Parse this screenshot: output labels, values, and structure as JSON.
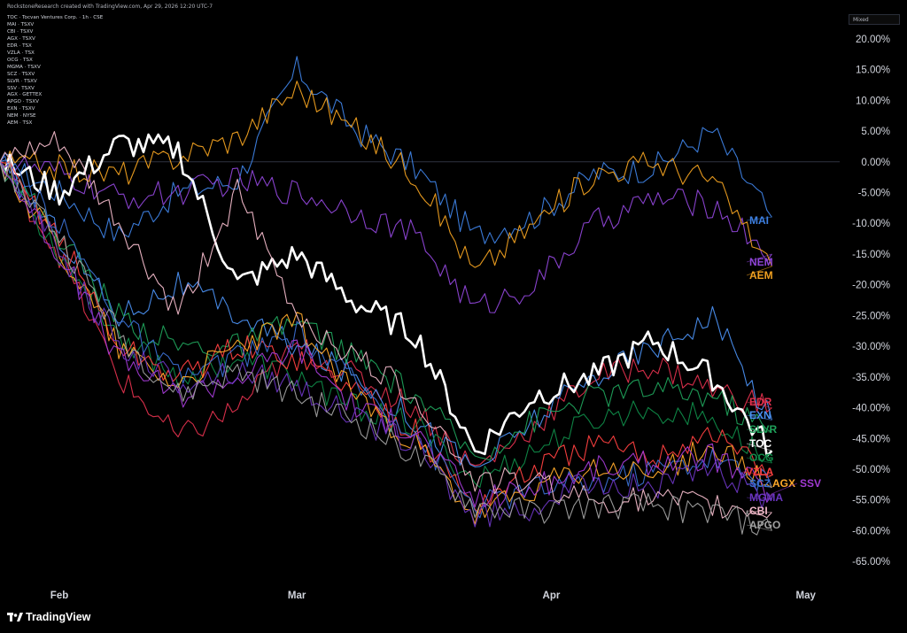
{
  "header": {
    "credit": "RockstoneResearch created with TradingView.com, Apr 29, 2026 12:20 UTC-7"
  },
  "mode_label": "Mixed",
  "brand": "TradingView",
  "legend_items": [
    "TOC · Tocvan Ventures Corp. · 1h · CSE",
    "MAI · TSXV",
    "CBI · TSXV",
    "AGX · TSXV",
    "EDR · TSX",
    "VZLA · TSX",
    "OCG · TSX",
    "MGMA · TSXV",
    "SCZ · TSXV",
    "SLVR · TSXV",
    "SSV · TSXV",
    "AGX · GETTEX",
    "APGO · TSXV",
    "EXN · TSXV",
    "NEM · NYSE",
    "AEM · TSX"
  ],
  "chart_data": {
    "type": "line",
    "title": "",
    "xlabel": "",
    "ylabel": "",
    "x_ticks": [
      {
        "label": "Feb",
        "x": "2026-02-02"
      },
      {
        "label": "Mar",
        "x": "2026-03-02"
      },
      {
        "label": "Apr",
        "x": "2026-04-01"
      },
      {
        "label": "May",
        "x": "2026-05-01"
      }
    ],
    "xlim": [
      "2026-01-26",
      "2026-05-05"
    ],
    "ylim": [
      -68,
      22
    ],
    "y_ticks": [
      20,
      15,
      10,
      5,
      0,
      -5,
      -10,
      -15,
      -20,
      -25,
      -30,
      -35,
      -40,
      -45,
      -50,
      -55,
      -60,
      -65
    ],
    "y_tick_labels": [
      "20.00%",
      "15.00%",
      "10.00%",
      "5.00%",
      "0.00%",
      "-5.00%",
      "-10.00%",
      "-15.00%",
      "-20.00%",
      "-25.00%",
      "-30.00%",
      "-35.00%",
      "-40.00%",
      "-45.00%",
      "-50.00%",
      "-55.00%",
      "-60.00%",
      "-65.00%"
    ],
    "zero_line": 0,
    "x_dates": [
      "2026-01-26",
      "2026-02-02",
      "2026-02-09",
      "2026-02-16",
      "2026-02-23",
      "2026-03-02",
      "2026-03-09",
      "2026-03-16",
      "2026-03-23",
      "2026-03-30",
      "2026-04-06",
      "2026-04-13",
      "2026-04-20",
      "2026-04-27"
    ],
    "series": [
      {
        "name": "MAI",
        "color": "#3d7fe0",
        "values": [
          0,
          -5,
          -12,
          -5,
          -3,
          15,
          5,
          -1,
          -12,
          -9,
          -2,
          -1,
          5,
          -9
        ]
      },
      {
        "name": "NEM",
        "color": "#8e44d6",
        "values": [
          0,
          -2,
          -6,
          -5,
          -3,
          -5,
          -8,
          -12,
          -24,
          -20,
          -10,
          -6,
          -7,
          -15
        ]
      },
      {
        "name": "AEM",
        "color": "#f0a020",
        "values": [
          0,
          -1,
          -2,
          1,
          4,
          12,
          5,
          -2,
          -18,
          -10,
          -2,
          0,
          -3,
          -17
        ]
      },
      {
        "name": "EDR",
        "color": "#e0304d",
        "values": [
          0,
          -15,
          -35,
          -45,
          -40,
          -30,
          -35,
          -40,
          -50,
          -43,
          -35,
          -33,
          -37,
          -40
        ]
      },
      {
        "name": "EXN",
        "color": "#4a8ff0",
        "values": [
          0,
          -12,
          -25,
          -20,
          -25,
          -30,
          -35,
          -42,
          -50,
          -42,
          -35,
          -30,
          -25,
          -42
        ]
      },
      {
        "name": "SLVR",
        "color": "#1fa05a",
        "values": [
          0,
          -12,
          -25,
          -30,
          -30,
          -26,
          -32,
          -38,
          -48,
          -42,
          -38,
          -37,
          -38,
          -44
        ]
      },
      {
        "name": "TOC",
        "color": "#ffffff",
        "values": [
          0,
          -5,
          3,
          2,
          -20,
          -15,
          -23,
          -28,
          -47,
          -38,
          -35,
          -29,
          -35,
          -47
        ]
      },
      {
        "name": "OCG",
        "color": "#0f8a48",
        "values": [
          0,
          -15,
          -28,
          -35,
          -32,
          -35,
          -40,
          -43,
          -52,
          -47,
          -42,
          -40,
          -42,
          -49
        ]
      },
      {
        "name": "VZLA",
        "color": "#ff4040",
        "values": [
          0,
          -12,
          -30,
          -35,
          -30,
          -32,
          -37,
          -44,
          -56,
          -50,
          -46,
          -48,
          -44,
          -51
        ]
      },
      {
        "name": "SCZ",
        "color": "#3a6ed0",
        "values": [
          0,
          -10,
          -25,
          -35,
          -32,
          -28,
          -36,
          -44,
          -56,
          -53,
          -52,
          -50,
          -48,
          -53
        ]
      },
      {
        "name": "AGX",
        "color": "#ffa92a",
        "values": [
          0,
          -14,
          -30,
          -36,
          -30,
          -26,
          -38,
          -46,
          -58,
          -53,
          -50,
          -51,
          -46,
          -53
        ]
      },
      {
        "name": "SSV",
        "color": "#a23ad3",
        "values": [
          0,
          -15,
          -32,
          -38,
          -35,
          -30,
          -40,
          -44,
          -55,
          -53,
          -50,
          -49,
          -48,
          -54
        ]
      },
      {
        "name": "MGMA",
        "color": "#6a35c0",
        "values": [
          0,
          -14,
          -30,
          -36,
          -34,
          -36,
          -42,
          -46,
          -58,
          -56,
          -52,
          -53,
          -50,
          -55
        ]
      },
      {
        "name": "CBI",
        "color": "#f0b8c8",
        "values": [
          0,
          3,
          -10,
          -25,
          -5,
          -25,
          -32,
          -38,
          -52,
          -52,
          -55,
          -55,
          -56,
          -57
        ]
      },
      {
        "name": "APGO",
        "color": "#a0a0a0",
        "values": [
          0,
          -12,
          -28,
          -38,
          -34,
          -38,
          -42,
          -48,
          -56,
          -57,
          -56,
          -56,
          -57,
          -60
        ]
      }
    ]
  }
}
